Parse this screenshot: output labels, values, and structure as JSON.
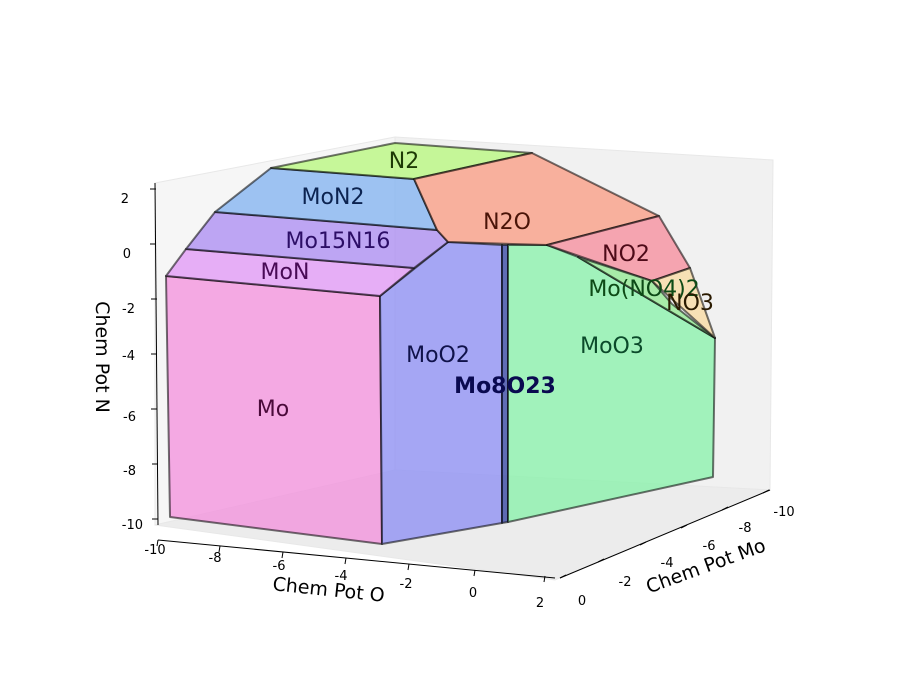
{
  "chart_data": {
    "type": "3d-polyhedral-phase-diagram",
    "axes": {
      "x": {
        "label": "Chem Pot O",
        "ticks": [
          "-10",
          "-8",
          "-6",
          "-4",
          "-2",
          "0",
          "2"
        ]
      },
      "y": {
        "label": "Chem Pot Mo",
        "ticks": [
          "0",
          "-2",
          "-4",
          "-6",
          "-8",
          "-10"
        ]
      },
      "z": {
        "label": "Chem Pot N",
        "ticks": [
          "2",
          "0",
          "-2",
          "-4",
          "-6",
          "-8",
          "-10"
        ]
      }
    },
    "regions": [
      {
        "name": "N2",
        "color": "#b5f77a"
      },
      {
        "name": "MoN2",
        "color": "#7fb0f0"
      },
      {
        "name": "N2O",
        "color": "#f99a80"
      },
      {
        "name": "Mo15N16",
        "color": "#a98af2"
      },
      {
        "name": "NO2",
        "color": "#f58a9a"
      },
      {
        "name": "MoN",
        "color": "#e095f5"
      },
      {
        "name": "Mo(NO4)2",
        "color": "#8fe88f"
      },
      {
        "name": "NO3",
        "color": "#f8d9a0"
      },
      {
        "name": "MoO3",
        "color": "#86f2a8"
      },
      {
        "name": "MoO2",
        "color": "#8b8cf4"
      },
      {
        "name": "Mo8O23",
        "color": "#2f3fa0"
      },
      {
        "name": "Mo",
        "color": "#f38fdc"
      }
    ]
  }
}
